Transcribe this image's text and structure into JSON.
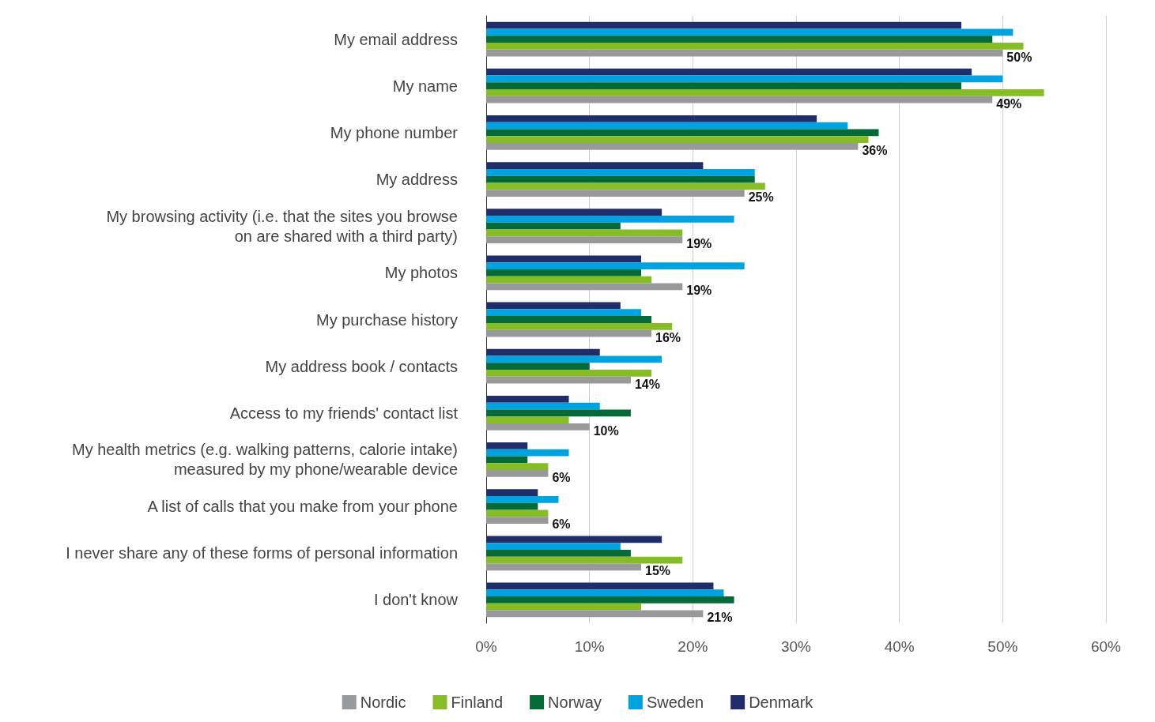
{
  "chart_data": {
    "type": "bar",
    "orientation": "horizontal",
    "categories": [
      "My email address",
      "My name",
      "My phone number",
      "My address",
      "My browsing activity (i.e. that the sites you browse\non are shared with a third party)",
      "My photos",
      "My purchase history",
      "My address book / contacts",
      "Access to my friends' contact list",
      "My health metrics (e.g. walking patterns, calorie intake)\nmeasured by my phone/wearable device",
      "A list of calls that you make from your phone",
      "I never share any of these forms of personal information",
      "I don't know"
    ],
    "series": [
      {
        "name": "Nordic",
        "color": "#97999b",
        "values": [
          50,
          49,
          36,
          25,
          19,
          19,
          16,
          14,
          10,
          6,
          6,
          15,
          21
        ],
        "value_labels": [
          "50%",
          "49%",
          "36%",
          "25%",
          "19%",
          "19%",
          "16%",
          "14%",
          "10%",
          "6%",
          "6%",
          "15%",
          "21%"
        ]
      },
      {
        "name": "Finland",
        "color": "#86bc25",
        "values": [
          52,
          54,
          37,
          27,
          19,
          16,
          18,
          16,
          8,
          6,
          6,
          19,
          15
        ]
      },
      {
        "name": "Norway",
        "color": "#046a38",
        "values": [
          49,
          46,
          38,
          26,
          13,
          15,
          16,
          10,
          14,
          4,
          5,
          14,
          24
        ]
      },
      {
        "name": "Sweden",
        "color": "#00a3e0",
        "values": [
          51,
          50,
          35,
          26,
          24,
          25,
          15,
          17,
          11,
          8,
          7,
          13,
          23
        ]
      },
      {
        "name": "Denmark",
        "color": "#1f2d6b",
        "values": [
          46,
          47,
          32,
          21,
          17,
          15,
          13,
          11,
          8,
          4,
          5,
          17,
          22
        ]
      }
    ],
    "xlim": [
      0,
      60
    ],
    "xticks": [
      {
        "value": 0,
        "label": "0%"
      },
      {
        "value": 10,
        "label": "10%"
      },
      {
        "value": 20,
        "label": "20%"
      },
      {
        "value": 30,
        "label": "30%"
      },
      {
        "value": 40,
        "label": "40%"
      },
      {
        "value": 50,
        "label": "50%"
      },
      {
        "value": 60,
        "label": "60%"
      }
    ],
    "grid": "x",
    "legend": "bottom"
  }
}
